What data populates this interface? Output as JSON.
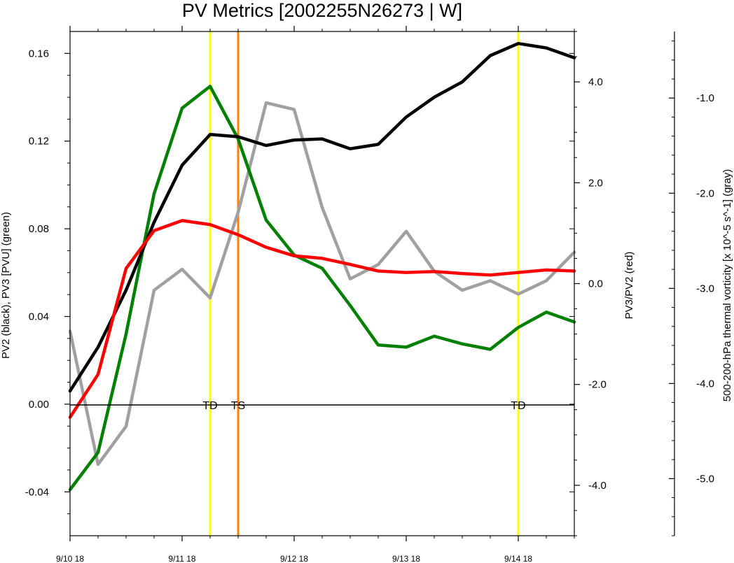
{
  "chart_data": {
    "type": "line",
    "title": "PV Metrics [2002255N26273 | W]",
    "ylabel_left": "PV2 (black), PV3 [PVU] (green)",
    "ylabel_right1": "PV3/PV2 (red)",
    "ylabel_right2": "500-200-hPa thermal vorticity [x 10^-5 s^-1] (gray)",
    "x_tick_labels": [
      "9/10 18",
      "9/11 18",
      "9/12 18",
      "9/13 18",
      "9/14 18"
    ],
    "x_tick_values": [
      0,
      24,
      48,
      72,
      96
    ],
    "x_unit": "hours since 9/10 18",
    "xlim": [
      0,
      108
    ],
    "ylim_left": [
      -0.06,
      0.17
    ],
    "ylim_right1": [
      -5.0,
      5.0
    ],
    "ylim_right2": [
      -5.6,
      -0.3
    ],
    "left_ticks": [
      "-0.04",
      "0.00",
      "0.04",
      "0.08",
      "0.12",
      "0.16"
    ],
    "left_tick_values": [
      -0.04,
      0.0,
      0.04,
      0.08,
      0.12,
      0.16
    ],
    "right1_ticks": [
      "-4.0",
      "-2.0",
      "0.0",
      "2.0",
      "4.0"
    ],
    "right1_tick_values": [
      -4.0,
      -2.0,
      0.0,
      2.0,
      4.0
    ],
    "right2_ticks": [
      "-5.0",
      "-4.0",
      "-3.0",
      "-2.0",
      "-1.0"
    ],
    "right2_tick_values": [
      -5.0,
      -4.0,
      -3.0,
      -2.0,
      -1.0
    ],
    "x": [
      0,
      6,
      12,
      18,
      24,
      30,
      36,
      42,
      48,
      54,
      60,
      66,
      72,
      78,
      84,
      90,
      96,
      102,
      108
    ],
    "series": [
      {
        "axis": "left",
        "color": "#000000",
        "values": [
          0.006,
          0.026,
          0.052,
          0.083,
          0.109,
          0.123,
          0.122,
          0.118,
          0.1205,
          0.121,
          0.1165,
          0.1185,
          0.131,
          0.14,
          0.147,
          0.159,
          0.1645,
          0.1625,
          0.158
        ]
      },
      {
        "axis": "left",
        "color": "#008000",
        "values": [
          -0.039,
          -0.022,
          0.032,
          0.096,
          0.135,
          0.145,
          0.121,
          0.084,
          0.068,
          0.062,
          0.045,
          0.027,
          0.026,
          0.031,
          0.0275,
          0.025,
          0.035,
          0.042,
          0.0375
        ]
      },
      {
        "axis": "right1",
        "color": "#ff0000",
        "values": [
          -2.65,
          -1.8,
          0.3,
          1.05,
          1.25,
          1.17,
          0.97,
          0.72,
          0.55,
          0.5,
          0.38,
          0.25,
          0.22,
          0.24,
          0.2,
          0.17,
          0.22,
          0.27,
          0.25
        ]
      },
      {
        "axis": "right2",
        "color": "#a0a0a0",
        "values": [
          -3.45,
          -4.85,
          -4.45,
          -3.02,
          -2.8,
          -3.1,
          -2.2,
          -1.05,
          -1.12,
          -2.15,
          -2.9,
          -2.75,
          -2.4,
          -2.82,
          -3.02,
          -2.92,
          -3.06,
          -2.92,
          -2.62
        ]
      }
    ],
    "markers": [
      {
        "label": "TD",
        "x": 30,
        "color": "#ffff00"
      },
      {
        "label": "TS",
        "x": 36,
        "color": "#ff8000"
      },
      {
        "label": "TD",
        "x": 96,
        "color": "#ffff00"
      }
    ],
    "zero_line": true,
    "grid": false,
    "legend": "none"
  }
}
